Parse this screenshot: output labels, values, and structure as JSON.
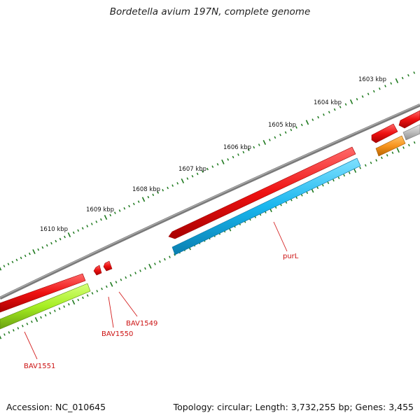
{
  "title": "Bordetella avium 197N, complete genome",
  "footer": {
    "accession": "Accession: NC_010645",
    "summary": "Topology: circular; Length: 3,732,255 bp; Genes: 3,455"
  },
  "ruler_labels": [
    "1603 kbp",
    "1604 kbp",
    "1605 kbp",
    "1606 kbp",
    "1607 kbp",
    "1608 kbp",
    "1609 kbp",
    "1610 kbp"
  ],
  "gene_labels": [
    {
      "id": "purl",
      "text": "purL"
    },
    {
      "id": "bav1549",
      "text": "BAV1549"
    },
    {
      "id": "bav1550",
      "text": "BAV1550"
    },
    {
      "id": "bav1551",
      "text": "BAV1551"
    }
  ],
  "colors": {
    "backbone": "#8a8a8a",
    "gene_red": "#ee1111",
    "gene_blue": "#19b6ee",
    "gene_green": "#a6ee22",
    "gene_orange": "#f7941d",
    "gene_grey": "#bdbdbd",
    "ticks": "#1f7a1f",
    "label_red": "#cc1111"
  }
}
